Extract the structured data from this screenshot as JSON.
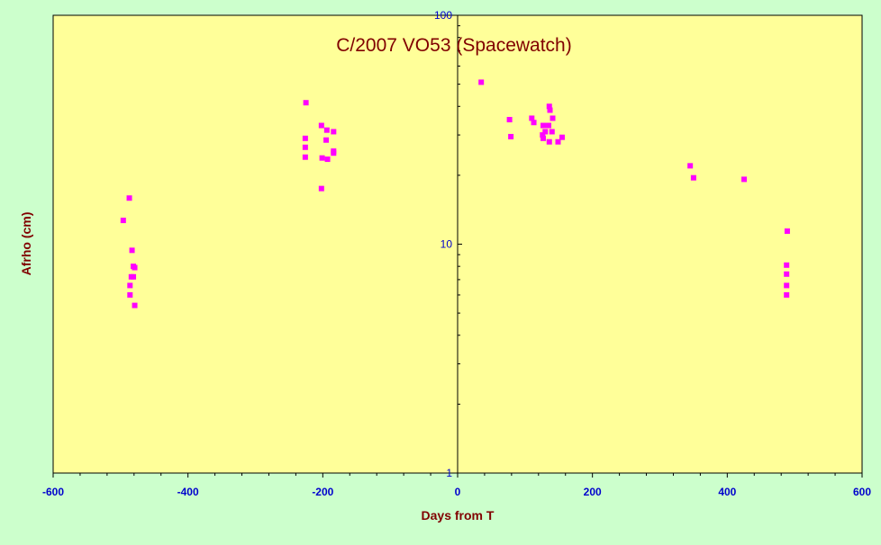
{
  "chart_data": {
    "type": "scatter",
    "title": "C/2007 VO53 (Spacewatch)",
    "xlabel": "Days from T",
    "ylabel": "Afrho (cm)",
    "xlim": [
      -600,
      600
    ],
    "ylim": [
      1,
      100
    ],
    "y_scale": "log",
    "x_ticks": [
      -600,
      -400,
      -200,
      0,
      200,
      400,
      600
    ],
    "x_tick_labels": [
      "-600",
      "-400",
      "-200",
      "0",
      "200",
      "400",
      "600"
    ],
    "y_ticks": [
      1,
      10,
      100
    ],
    "y_tick_labels": [
      "1",
      "10",
      "100"
    ],
    "grid": false,
    "legend": "none",
    "colors": {
      "background": "#CCFFCC",
      "plot_area": "#FFFF99",
      "marker": "#FF00FF",
      "title": "#800000",
      "tick_labels": "#0000CC"
    },
    "series": [
      {
        "marker": "square",
        "points": [
          {
            "x": -496,
            "y": 12.7
          },
          {
            "x": -487,
            "y": 15.9
          },
          {
            "x": -483,
            "y": 9.4
          },
          {
            "x": -481,
            "y": 8.0
          },
          {
            "x": -479,
            "y": 7.9
          },
          {
            "x": -484,
            "y": 7.2
          },
          {
            "x": -481,
            "y": 7.2
          },
          {
            "x": -486,
            "y": 6.6
          },
          {
            "x": -486,
            "y": 6.0
          },
          {
            "x": -479,
            "y": 5.4
          },
          {
            "x": -225,
            "y": 41.5
          },
          {
            "x": -226,
            "y": 29.0
          },
          {
            "x": -226,
            "y": 26.5
          },
          {
            "x": -226,
            "y": 24.0
          },
          {
            "x": -202,
            "y": 33.0
          },
          {
            "x": -194,
            "y": 31.5
          },
          {
            "x": -195,
            "y": 28.5
          },
          {
            "x": -201,
            "y": 23.8
          },
          {
            "x": -193,
            "y": 23.5
          },
          {
            "x": -184,
            "y": 31.0
          },
          {
            "x": -184,
            "y": 25.5
          },
          {
            "x": -184,
            "y": 25.0
          },
          {
            "x": -202,
            "y": 17.5
          },
          {
            "x": 35,
            "y": 51.0
          },
          {
            "x": 77,
            "y": 35.0
          },
          {
            "x": 79,
            "y": 29.5
          },
          {
            "x": 110,
            "y": 35.5
          },
          {
            "x": 113,
            "y": 34.0
          },
          {
            "x": 136,
            "y": 40.0
          },
          {
            "x": 137,
            "y": 38.5
          },
          {
            "x": 141,
            "y": 35.5
          },
          {
            "x": 127,
            "y": 33.0
          },
          {
            "x": 135,
            "y": 33.0
          },
          {
            "x": 130,
            "y": 31.0
          },
          {
            "x": 140,
            "y": 31.0
          },
          {
            "x": 126,
            "y": 30.0
          },
          {
            "x": 127,
            "y": 29.0
          },
          {
            "x": 155,
            "y": 29.3
          },
          {
            "x": 136,
            "y": 28.0
          },
          {
            "x": 149,
            "y": 28.0
          },
          {
            "x": 345,
            "y": 22.0
          },
          {
            "x": 350,
            "y": 19.5
          },
          {
            "x": 425,
            "y": 19.2
          },
          {
            "x": 489,
            "y": 11.4
          },
          {
            "x": 488,
            "y": 8.1
          },
          {
            "x": 488,
            "y": 7.4
          },
          {
            "x": 488,
            "y": 6.6
          },
          {
            "x": 488,
            "y": 6.0
          }
        ]
      }
    ]
  }
}
